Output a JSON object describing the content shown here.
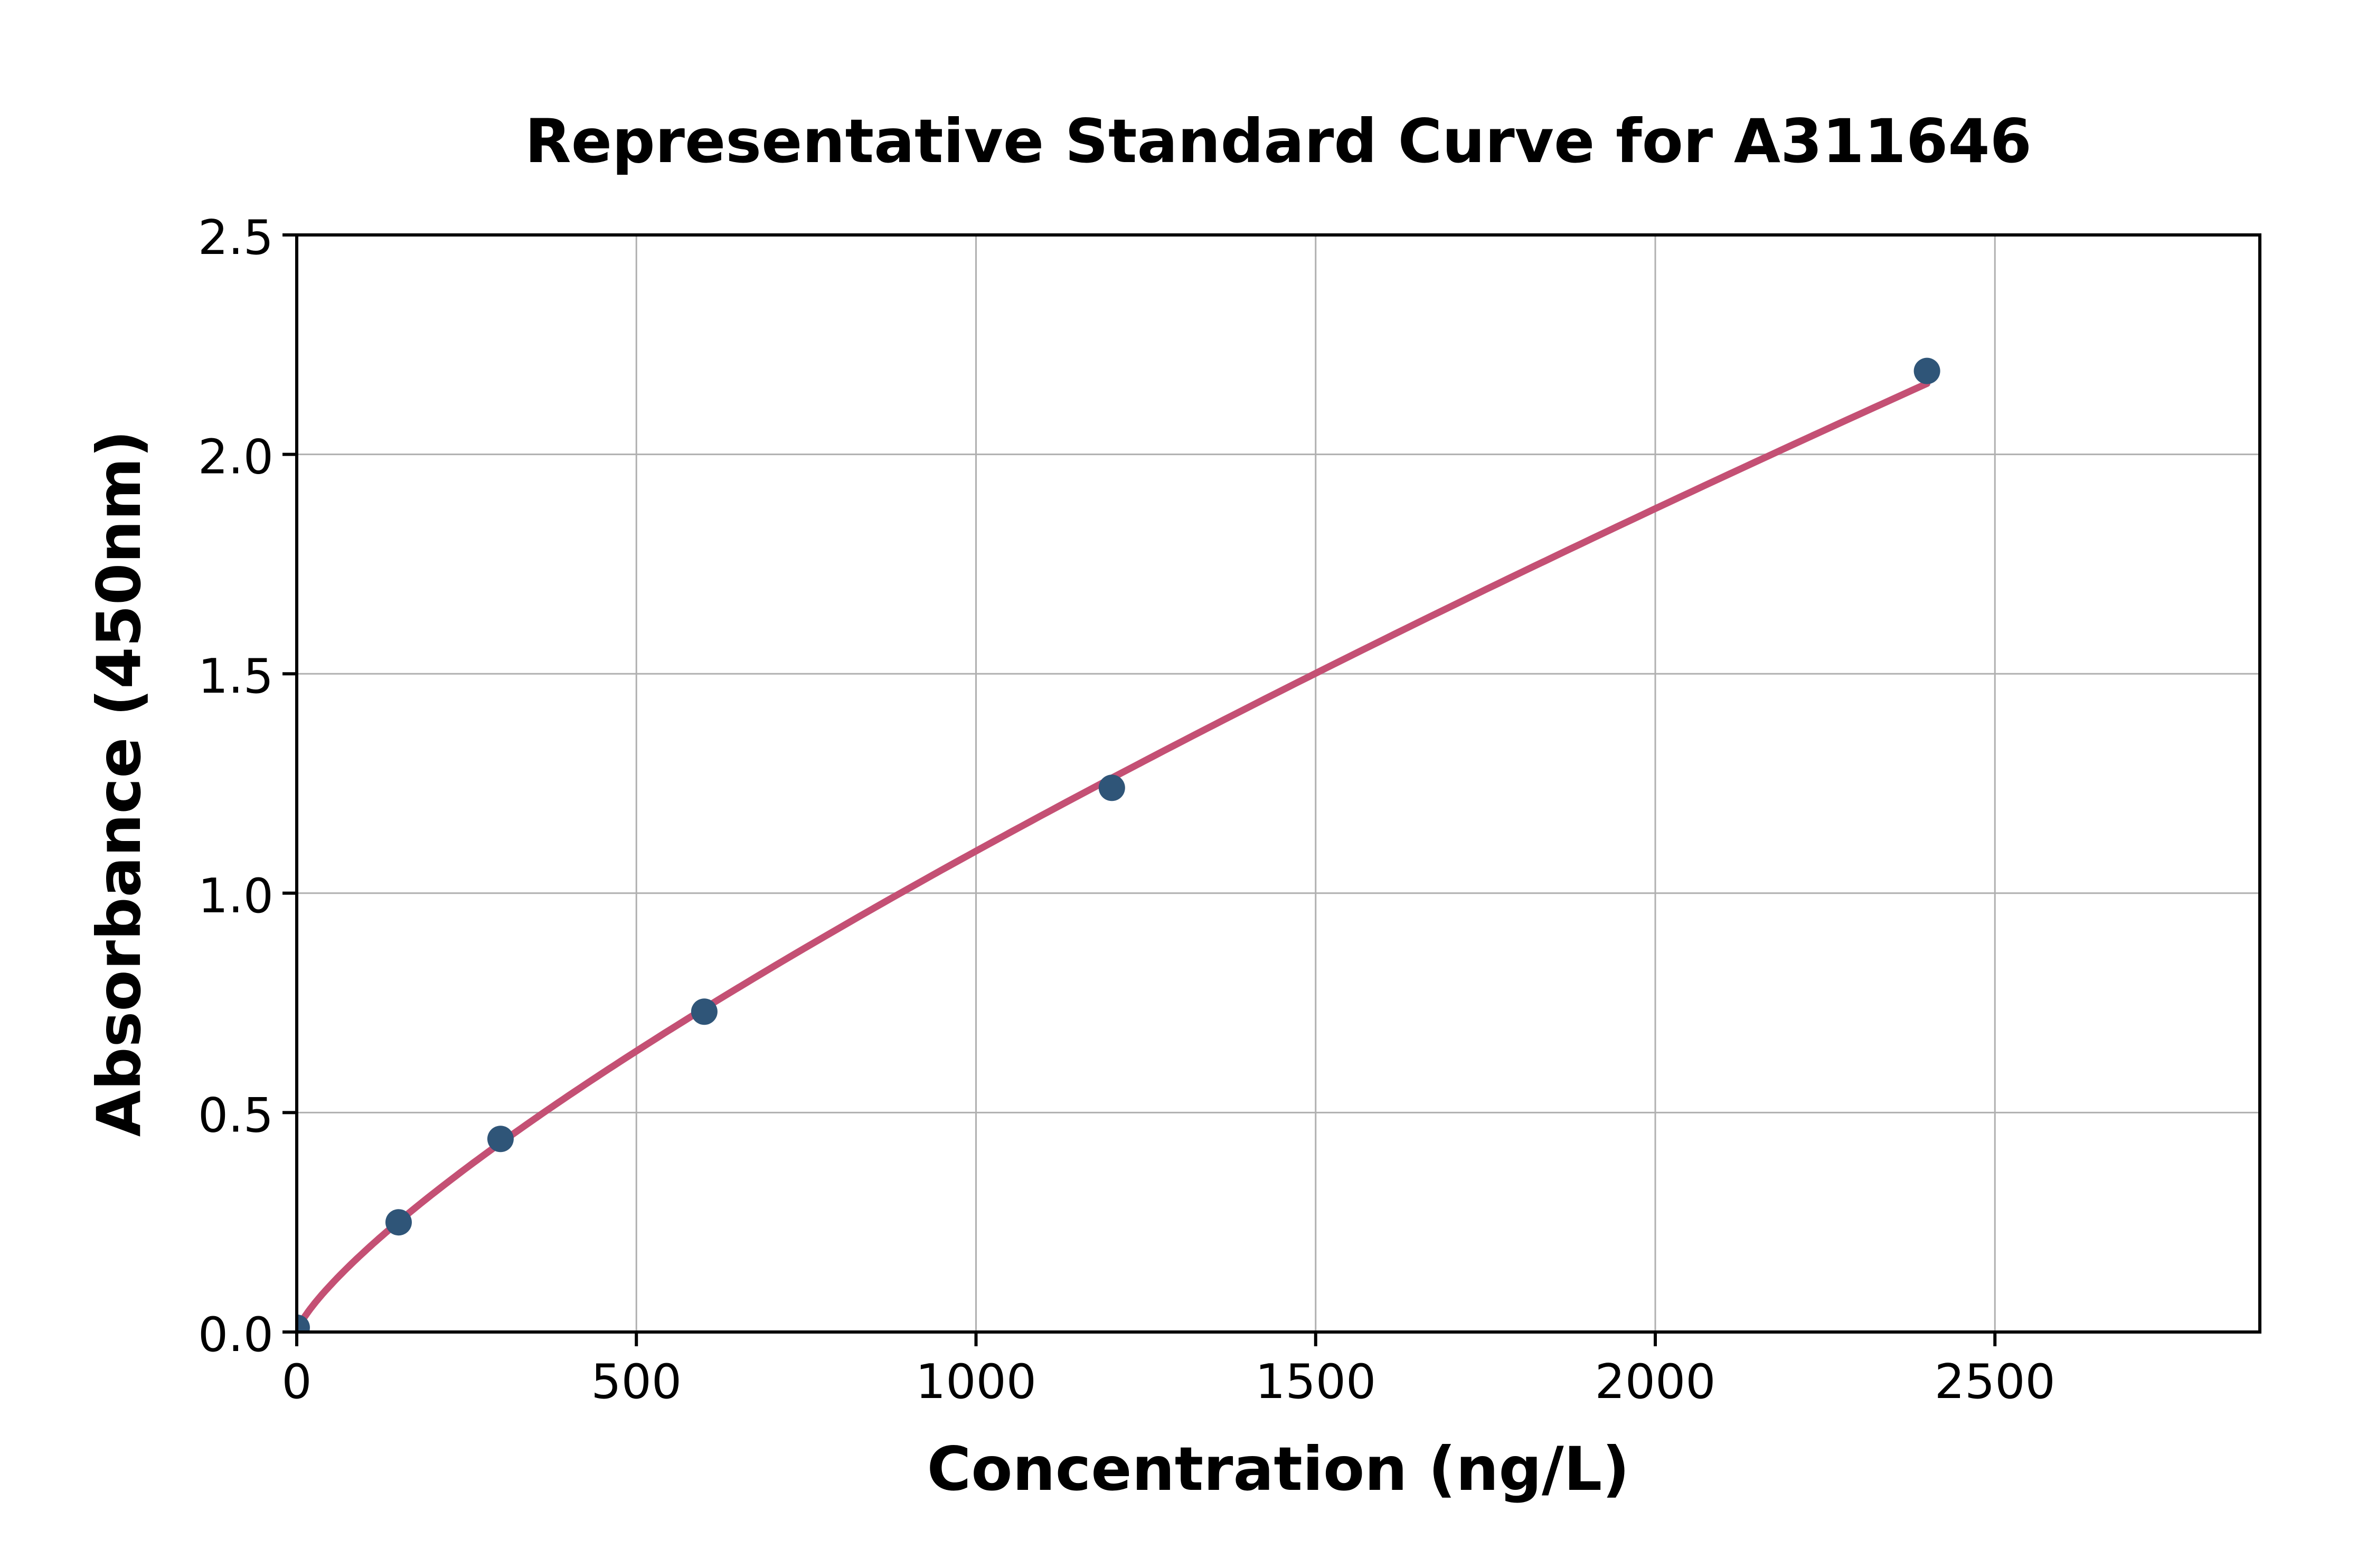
{
  "figure": {
    "background_color": "#ffffff"
  },
  "chart_data": {
    "type": "scatter",
    "title": "Representative Standard Curve for A311646",
    "xlabel": "Concentration (ng/L)",
    "ylabel": "Absorbance (450nm)",
    "points": [
      {
        "x": 0,
        "y": 0.01
      },
      {
        "x": 150,
        "y": 0.25
      },
      {
        "x": 300,
        "y": 0.44
      },
      {
        "x": 600,
        "y": 0.73
      },
      {
        "x": 1200,
        "y": 1.24
      },
      {
        "x": 2400,
        "y": 2.19
      }
    ],
    "fit_curve": "power",
    "x_ticks": [
      0,
      500,
      1000,
      1500,
      2000,
      2500
    ],
    "y_ticks": [
      0.0,
      0.5,
      1.0,
      1.5,
      2.0,
      2.5
    ],
    "xlim": [
      0,
      2890
    ],
    "ylim": [
      0,
      2.5
    ],
    "grid": true,
    "legend": null,
    "colors": {
      "curve": "#c45074",
      "marker": "#2f5578",
      "grid": "#b0b0b0",
      "axis": "#000000",
      "text": "#000000"
    }
  }
}
